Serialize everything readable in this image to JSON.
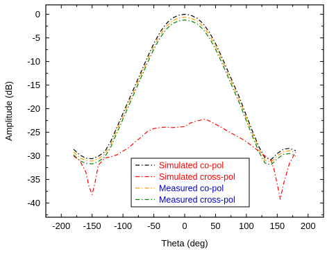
{
  "chart_data": {
    "type": "line",
    "xlabel": "Theta (deg)",
    "ylabel": "Amplitude (dB)",
    "xlim": [
      -225,
      225
    ],
    "ylim": [
      -43,
      2
    ],
    "xticks": [
      -200,
      -150,
      -100,
      -50,
      0,
      50,
      100,
      150,
      200
    ],
    "yticks": [
      0,
      -5,
      -10,
      -15,
      -20,
      -25,
      -30,
      -35,
      -40
    ],
    "legend_position": "lower-center",
    "grid": false,
    "series": [
      {
        "name": "Simulated co-pol",
        "color": "#000000",
        "dash": "dash-dot",
        "x": [
          -180,
          -170,
          -160,
          -150,
          -140,
          -130,
          -120,
          -110,
          -100,
          -90,
          -80,
          -70,
          -60,
          -50,
          -40,
          -30,
          -20,
          -10,
          0,
          10,
          20,
          30,
          40,
          50,
          60,
          70,
          80,
          90,
          100,
          110,
          120,
          130,
          140,
          150,
          160,
          170,
          180
        ],
        "y": [
          -28.6,
          -29.8,
          -30.5,
          -30.6,
          -30.1,
          -29.2,
          -27.0,
          -24.0,
          -21.0,
          -18.0,
          -15.0,
          -12.0,
          -9.0,
          -6.2,
          -3.8,
          -2.0,
          -0.8,
          -0.2,
          0.0,
          -0.2,
          -0.8,
          -2.0,
          -3.8,
          -6.2,
          -9.0,
          -12.0,
          -15.0,
          -18.0,
          -21.5,
          -24.8,
          -28.0,
          -30.4,
          -30.8,
          -29.5,
          -28.6,
          -28.4,
          -28.9
        ]
      },
      {
        "name": "Simulated cross-pol",
        "color": "#ff0000",
        "dash": "dash-dot",
        "x": [
          -180,
          -170,
          -160,
          -155,
          -150,
          -145,
          -140,
          -130,
          -120,
          -110,
          -100,
          -90,
          -80,
          -70,
          -60,
          -50,
          -40,
          -30,
          -20,
          -10,
          0,
          10,
          20,
          30,
          35,
          40,
          50,
          60,
          70,
          80,
          90,
          100,
          110,
          120,
          130,
          140,
          145,
          150,
          155,
          160,
          170,
          180
        ],
        "y": [
          -30.0,
          -31.0,
          -33.5,
          -36.5,
          -38.2,
          -35.5,
          -32.0,
          -30.5,
          -30.2,
          -29.8,
          -29.0,
          -28.2,
          -27.0,
          -26.0,
          -24.8,
          -24.2,
          -24.0,
          -23.9,
          -24.0,
          -23.9,
          -23.8,
          -23.0,
          -22.6,
          -22.3,
          -22.3,
          -22.6,
          -23.3,
          -24.0,
          -24.8,
          -25.5,
          -26.2,
          -27.0,
          -28.0,
          -29.0,
          -30.0,
          -31.0,
          -33.0,
          -36.0,
          -39.2,
          -36.0,
          -31.5,
          -29.2
        ]
      },
      {
        "name": "Measured co-pol",
        "color": "#ff9900",
        "dash": "dash-dot",
        "x": [
          -180,
          -170,
          -160,
          -150,
          -140,
          -130,
          -120,
          -110,
          -100,
          -90,
          -80,
          -70,
          -60,
          -50,
          -40,
          -30,
          -20,
          -10,
          0,
          10,
          20,
          30,
          40,
          50,
          60,
          70,
          80,
          90,
          100,
          110,
          120,
          130,
          140,
          150,
          160,
          170,
          180
        ],
        "y": [
          -29.2,
          -30.4,
          -31.0,
          -31.1,
          -30.6,
          -29.7,
          -27.6,
          -24.6,
          -21.6,
          -18.6,
          -15.6,
          -12.6,
          -9.6,
          -6.8,
          -4.4,
          -2.6,
          -1.4,
          -0.8,
          -0.6,
          -0.8,
          -1.4,
          -2.6,
          -4.4,
          -6.8,
          -9.6,
          -12.6,
          -15.6,
          -18.6,
          -22.0,
          -25.3,
          -28.5,
          -30.9,
          -31.3,
          -30.0,
          -29.1,
          -28.9,
          -29.4
        ]
      },
      {
        "name": "Measured cross-pol",
        "color": "#008000",
        "dash": "dash-dot",
        "x": [
          -180,
          -170,
          -160,
          -150,
          -140,
          -130,
          -120,
          -110,
          -100,
          -90,
          -80,
          -70,
          -60,
          -50,
          -40,
          -30,
          -20,
          -10,
          0,
          10,
          20,
          30,
          40,
          50,
          60,
          70,
          80,
          90,
          100,
          110,
          120,
          130,
          140,
          150,
          160,
          170,
          180
        ],
        "y": [
          -29.8,
          -31.0,
          -31.6,
          -31.7,
          -31.2,
          -30.3,
          -28.2,
          -25.2,
          -22.2,
          -19.2,
          -16.2,
          -13.2,
          -10.2,
          -7.4,
          -5.0,
          -3.2,
          -2.0,
          -1.4,
          -1.2,
          -1.4,
          -2.0,
          -3.2,
          -5.0,
          -7.4,
          -10.2,
          -13.2,
          -16.2,
          -19.2,
          -22.6,
          -25.9,
          -29.1,
          -31.5,
          -31.9,
          -30.6,
          -29.7,
          -29.5,
          -30.0
        ]
      }
    ]
  }
}
